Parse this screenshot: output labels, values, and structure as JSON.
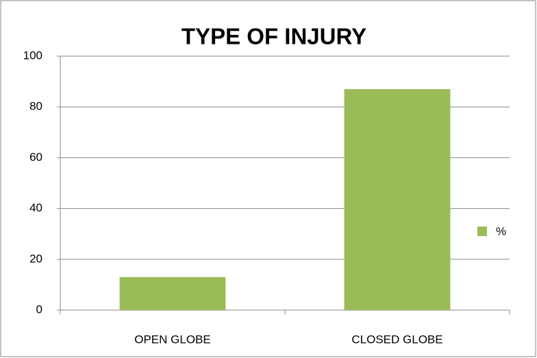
{
  "chart_data": {
    "type": "bar",
    "title": "TYPE OF INJURY",
    "categories": [
      "OPEN GLOBE",
      "CLOSED GLOBE"
    ],
    "series": [
      {
        "name": "%",
        "color": "#9bbb59",
        "values": [
          13,
          87
        ]
      }
    ],
    "ylim": [
      0,
      100
    ],
    "yticks": [
      0,
      20,
      40,
      60,
      80,
      100
    ],
    "grid": true,
    "legend": "right"
  }
}
